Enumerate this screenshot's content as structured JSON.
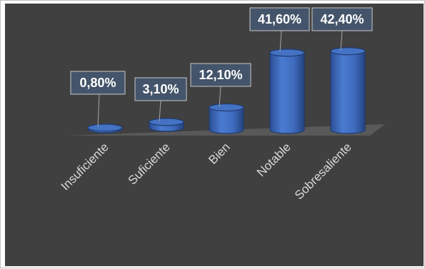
{
  "chart_data": {
    "type": "bar",
    "style": "3d-cylinder",
    "categories": [
      "Insuficiente",
      "Suficiente",
      "Bien",
      "Notable",
      "Sobresaliente"
    ],
    "values": [
      0.8,
      3.1,
      12.1,
      41.6,
      42.4
    ],
    "data_labels": [
      "0,80%",
      "3,10%",
      "12,10%",
      "41,60%",
      "42,40%"
    ],
    "title": "",
    "xlabel": "",
    "ylabel": "",
    "legend": "none",
    "grid": false,
    "colors": {
      "bar": "#4472c4",
      "bar_dark": "#2f4f8f",
      "label_box": "#44546a",
      "background": "#404040",
      "floor": "#595959",
      "text": "#ffffff",
      "tick_text": "#d9d9d9"
    }
  }
}
